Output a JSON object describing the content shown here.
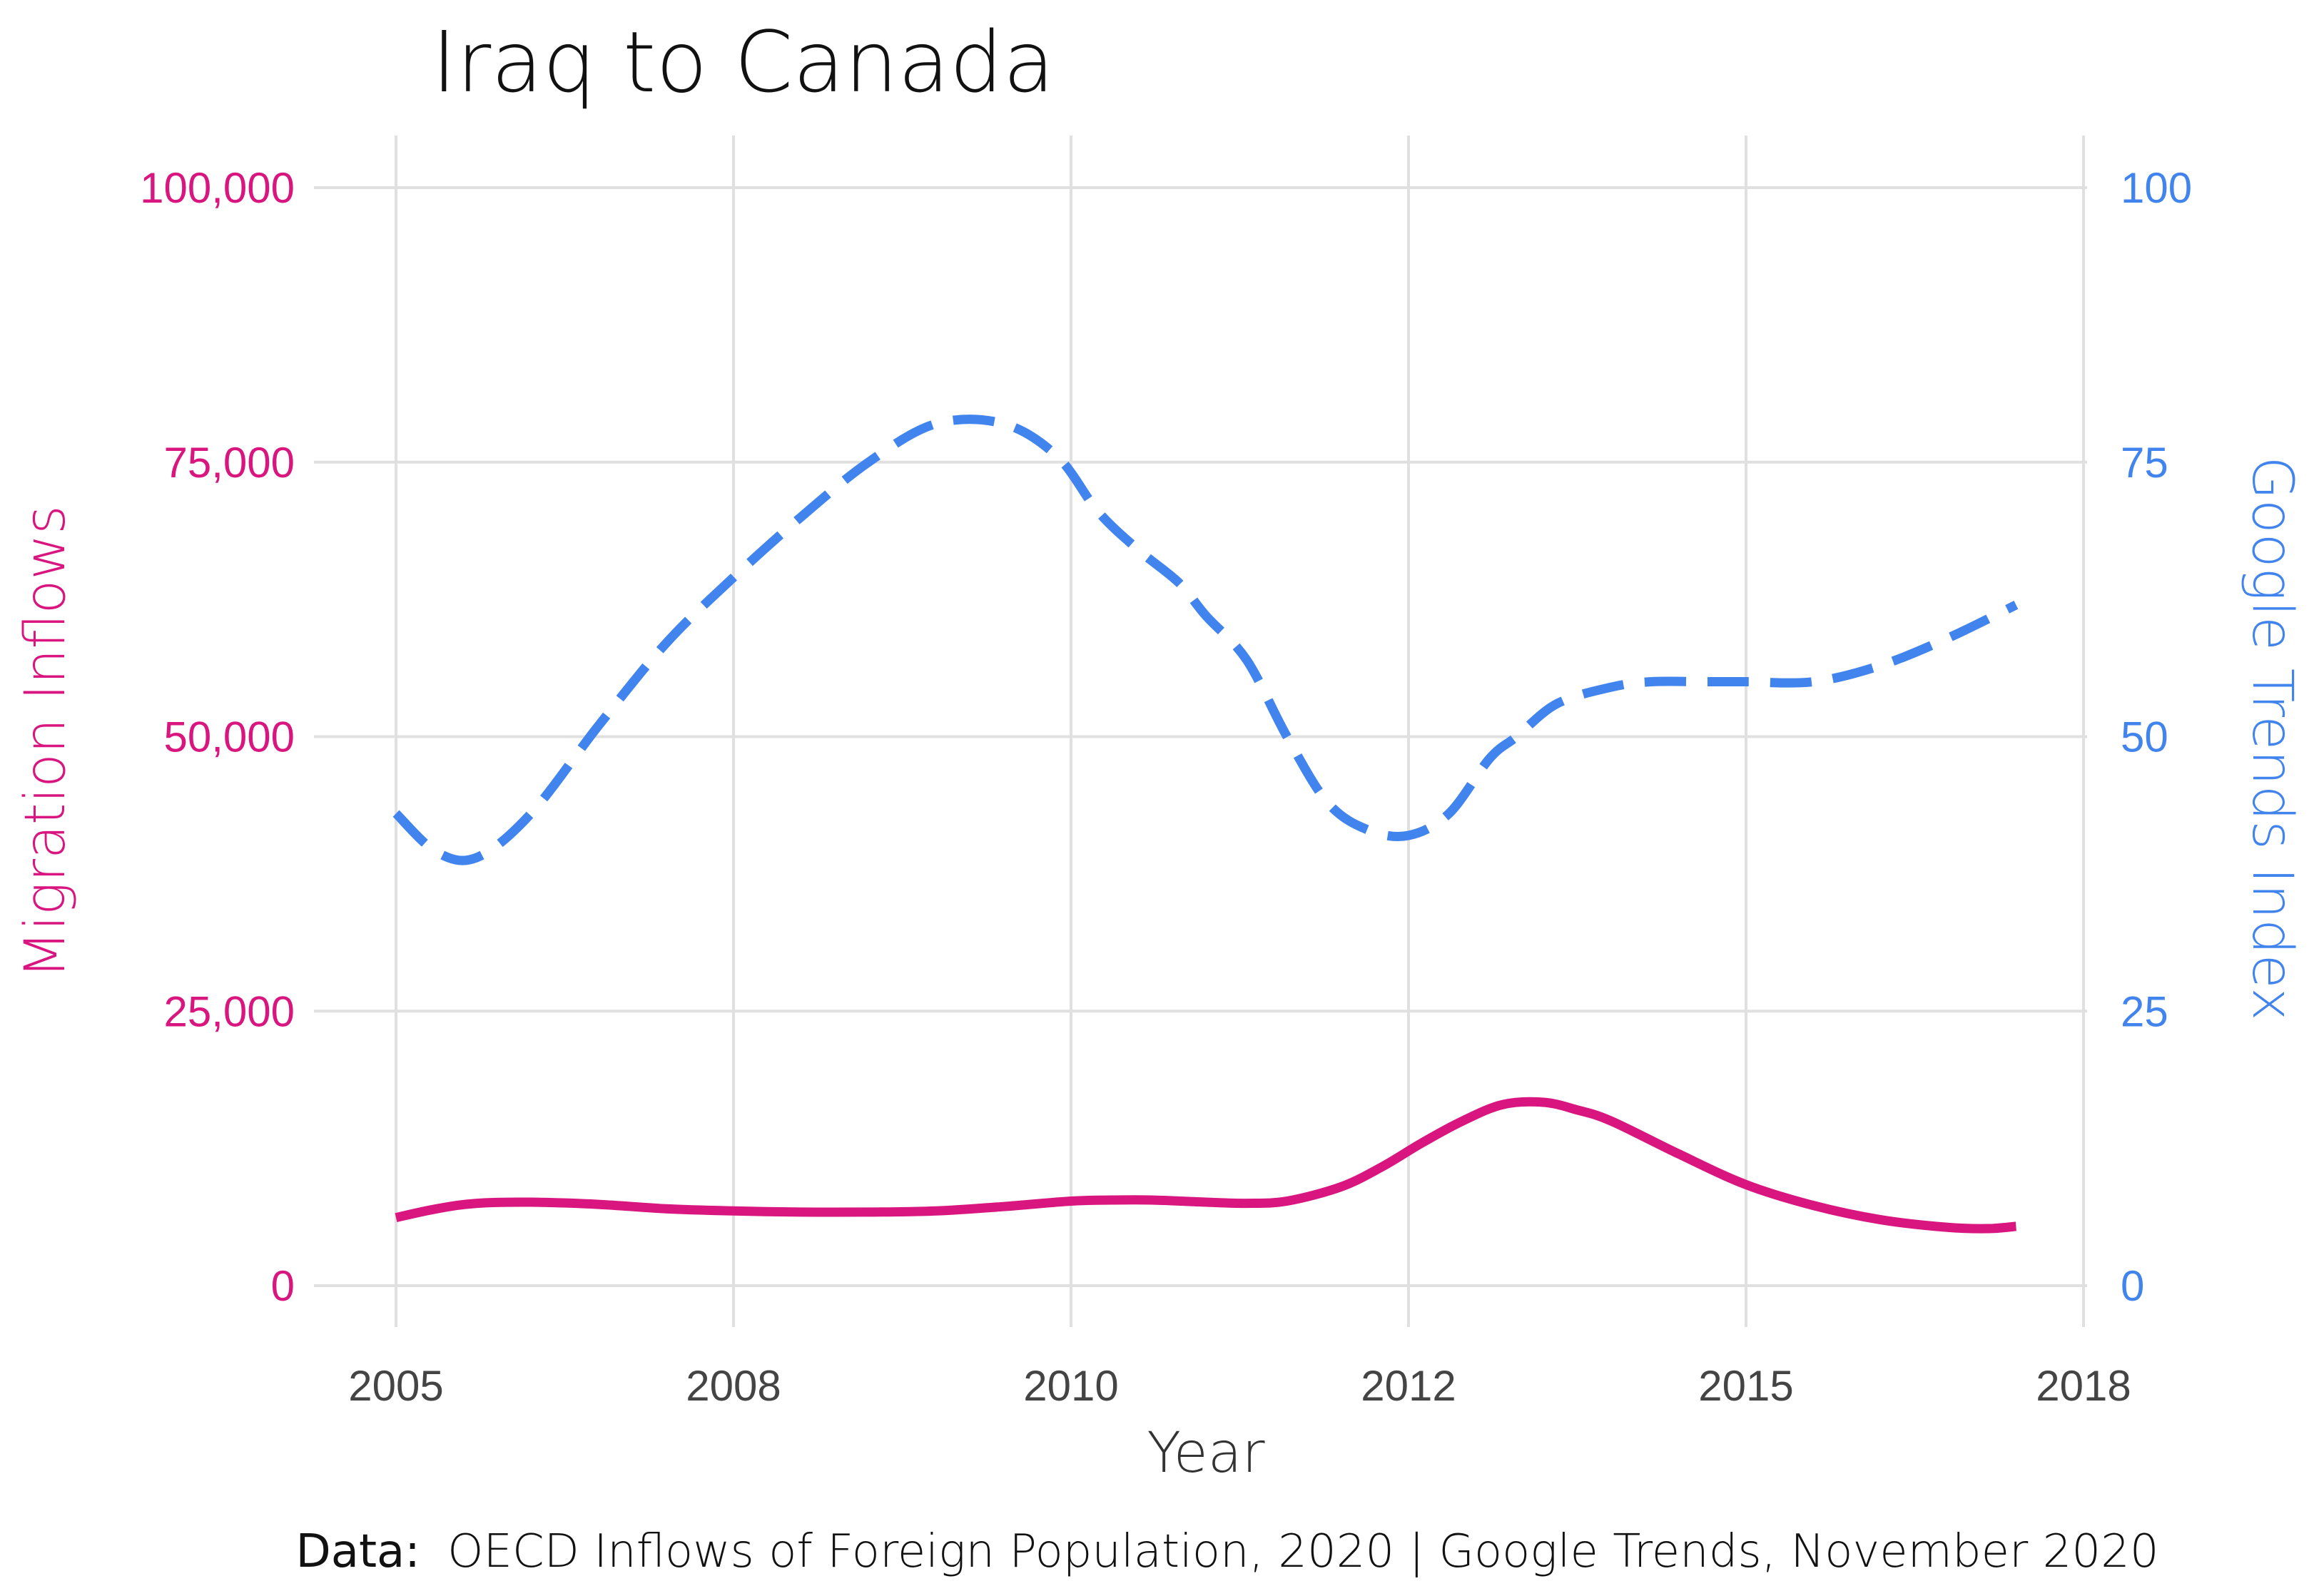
{
  "chart_data": {
    "type": "line",
    "title": "Iraq to Canada",
    "xlabel": "Year",
    "ylabel_left": "Migration Inflows",
    "ylabel_right": "Google Trends Index",
    "caption_label": "Data:",
    "caption_text": "OECD Inflows of Foreign Population, 2020 | Google Trends, November 2020",
    "x_ticks": [
      "2005",
      "2008",
      "2010",
      "2012",
      "2015",
      "2018"
    ],
    "x_tick_values": [
      2005,
      2007.5,
      2010,
      2012.5,
      2015,
      2017.5
    ],
    "xlim": [
      2005,
      2017.5
    ],
    "y_left_ticks": [
      "0",
      "25,000",
      "50,000",
      "75,000",
      "100,000"
    ],
    "y_left_tick_values": [
      0,
      25000,
      50000,
      75000,
      100000
    ],
    "ylim_left": [
      0,
      100000
    ],
    "y_right_ticks": [
      "0",
      "25",
      "50",
      "75",
      "100"
    ],
    "y_right_tick_values": [
      0,
      25,
      50,
      75,
      100
    ],
    "ylim_right": [
      0,
      100
    ],
    "grid": true,
    "colors": {
      "migration": "#d9157f",
      "trends": "#4284ee",
      "grid": "#e0e0e0"
    },
    "series": [
      {
        "axis": "left",
        "style": "solid",
        "x": [
          2005.0,
          2005.3,
          2005.6,
          2006.0,
          2006.5,
          2007.0,
          2007.5,
          2008.0,
          2008.5,
          2009.0,
          2009.5,
          2010.0,
          2010.3,
          2010.6,
          2011.0,
          2011.3,
          2011.6,
          2012.0,
          2012.3,
          2012.6,
          2012.9,
          2013.2,
          2013.5,
          2013.75,
          2014.0,
          2014.5,
          2015.0,
          2015.5,
          2016.0,
          2016.5,
          2016.8,
          2017.0
        ],
        "values": [
          6200,
          7000,
          7500,
          7600,
          7400,
          7000,
          6800,
          6700,
          6700,
          6800,
          7200,
          7700,
          7800,
          7800,
          7600,
          7500,
          7700,
          9000,
          10800,
          13000,
          15000,
          16500,
          16700,
          16000,
          15000,
          12000,
          9200,
          7300,
          6000,
          5300,
          5200,
          5400
        ]
      },
      {
        "axis": "right",
        "style": "dashed",
        "x": [
          2005.0,
          2005.3,
          2005.6,
          2006.0,
          2006.5,
          2007.0,
          2007.5,
          2008.0,
          2008.5,
          2009.0,
          2009.5,
          2009.9,
          2010.2,
          2010.5,
          2010.8,
          2011.0,
          2011.3,
          2011.6,
          2011.9,
          2012.2,
          2012.5,
          2012.8,
          2013.1,
          2013.3,
          2013.6,
          2014.0,
          2014.3,
          2014.7,
          2015.0,
          2015.5,
          2016.0,
          2016.5,
          2017.0
        ],
        "values": [
          43,
          39.5,
          39,
          43,
          51,
          58.5,
          64.5,
          70,
          75,
          78.5,
          78.5,
          75.5,
          70.5,
          67,
          64,
          61,
          57,
          50,
          44,
          41.5,
          41,
          43,
          48,
          50,
          53,
          54.5,
          55,
          55,
          55,
          55,
          56.5,
          59,
          62
        ]
      }
    ]
  }
}
